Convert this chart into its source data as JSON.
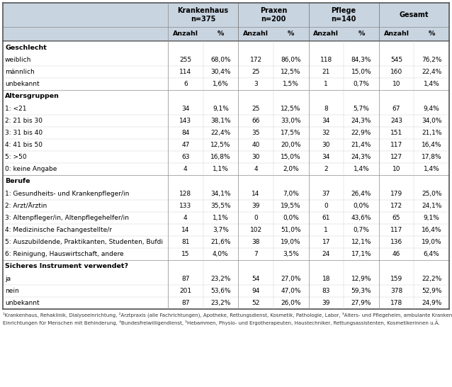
{
  "header_bg": "#c8d4e0",
  "col_groups": [
    {
      "label": "Krankenhaus\nn=375",
      "span": 2
    },
    {
      "label": "Praxen\nn=200",
      "span": 2
    },
    {
      "label": "Pflege\nn=140",
      "span": 2
    },
    {
      "label": "Gesamt",
      "span": 2
    }
  ],
  "sub_headers": [
    "Anzahl",
    "%",
    "Anzahl",
    "%",
    "Anzahl",
    "%",
    "Anzahl",
    "%"
  ],
  "sections": [
    {
      "title": "Geschlecht",
      "rows": [
        [
          "weiblich",
          "255",
          "68,0%",
          "172",
          "86,0%",
          "118",
          "84,3%",
          "545",
          "76,2%"
        ],
        [
          "männlich",
          "114",
          "30,4%",
          "25",
          "12,5%",
          "21",
          "15,0%",
          "160",
          "22,4%"
        ],
        [
          "unbekannt",
          "6",
          "1,6%",
          "3",
          "1,5%",
          "1",
          "0,7%",
          "10",
          "1,4%"
        ]
      ]
    },
    {
      "title": "Altersgruppen",
      "rows": [
        [
          "1: <21",
          "34",
          "9,1%",
          "25",
          "12,5%",
          "8",
          "5,7%",
          "67",
          "9,4%"
        ],
        [
          "2: 21 bis 30",
          "143",
          "38,1%",
          "66",
          "33,0%",
          "34",
          "24,3%",
          "243",
          "34,0%"
        ],
        [
          "3: 31 bis 40",
          "84",
          "22,4%",
          "35",
          "17,5%",
          "32",
          "22,9%",
          "151",
          "21,1%"
        ],
        [
          "4: 41 bis 50",
          "47",
          "12,5%",
          "40",
          "20,0%",
          "30",
          "21,4%",
          "117",
          "16,4%"
        ],
        [
          "5: >50",
          "63",
          "16,8%",
          "30",
          "15,0%",
          "34",
          "24,3%",
          "127",
          "17,8%"
        ],
        [
          "0: keine Angabe",
          "4",
          "1,1%",
          "4",
          "2,0%",
          "2",
          "1,4%",
          "10",
          "1,4%"
        ]
      ]
    },
    {
      "title": "Berufe",
      "rows": [
        [
          "1: Gesundheits- und Krankenpfleger/in",
          "128",
          "34,1%",
          "14",
          "7,0%",
          "37",
          "26,4%",
          "179",
          "25,0%"
        ],
        [
          "2: Arzt/Ärztin",
          "133",
          "35,5%",
          "39",
          "19,5%",
          "0",
          "0,0%",
          "172",
          "24,1%"
        ],
        [
          "3: Altenpfleger/in, Altenpflegehelfer/in",
          "4",
          "1,1%",
          "0",
          "0,0%",
          "61",
          "43,6%",
          "65",
          "9,1%"
        ],
        [
          "4: Medizinische Fachangestellte/r",
          "14",
          "3,7%",
          "102",
          "51,0%",
          "1",
          "0,7%",
          "117",
          "16,4%"
        ],
        [
          "5: Auszubildende, Praktikanten, Studenten, Bufdi",
          "81",
          "21,6%",
          "38",
          "19,0%",
          "17",
          "12,1%",
          "136",
          "19,0%"
        ],
        [
          "6: Reinigung, Hauswirtschaft, andere",
          "15",
          "4,0%",
          "7",
          "3,5%",
          "24",
          "17,1%",
          "46",
          "6,4%"
        ]
      ]
    },
    {
      "title": "Sicheres Instrument verwendet?",
      "rows": [
        [
          "ja",
          "87",
          "23,2%",
          "54",
          "27,0%",
          "18",
          "12,9%",
          "159",
          "22,2%"
        ],
        [
          "nein",
          "201",
          "53,6%",
          "94",
          "47,0%",
          "83",
          "59,3%",
          "378",
          "52,9%"
        ],
        [
          "unbekannt",
          "87",
          "23,2%",
          "52",
          "26,0%",
          "39",
          "27,9%",
          "178",
          "24,9%"
        ]
      ]
    }
  ],
  "footnote1": "¹Krankenhaus, Rehaklinik, Dialyseeinrichtung, ²Arztpraxis (alle Fachrichtungen), Apotheke, Rettungsdienst, Kosmetik, Pathologie, Labor, ³Alters- und Pflegeheim, ambulante Kranken- und Altenpflege,",
  "footnote2": "Einrichtungen für Menschen mit Behinderung, ⁴Bundesfreiwilligendienst, ⁵Hebammen, Physio- und Ergotherapeuten, Haustechniker, Rettungsassistenten, Kosmetikerinnen u.Ä."
}
